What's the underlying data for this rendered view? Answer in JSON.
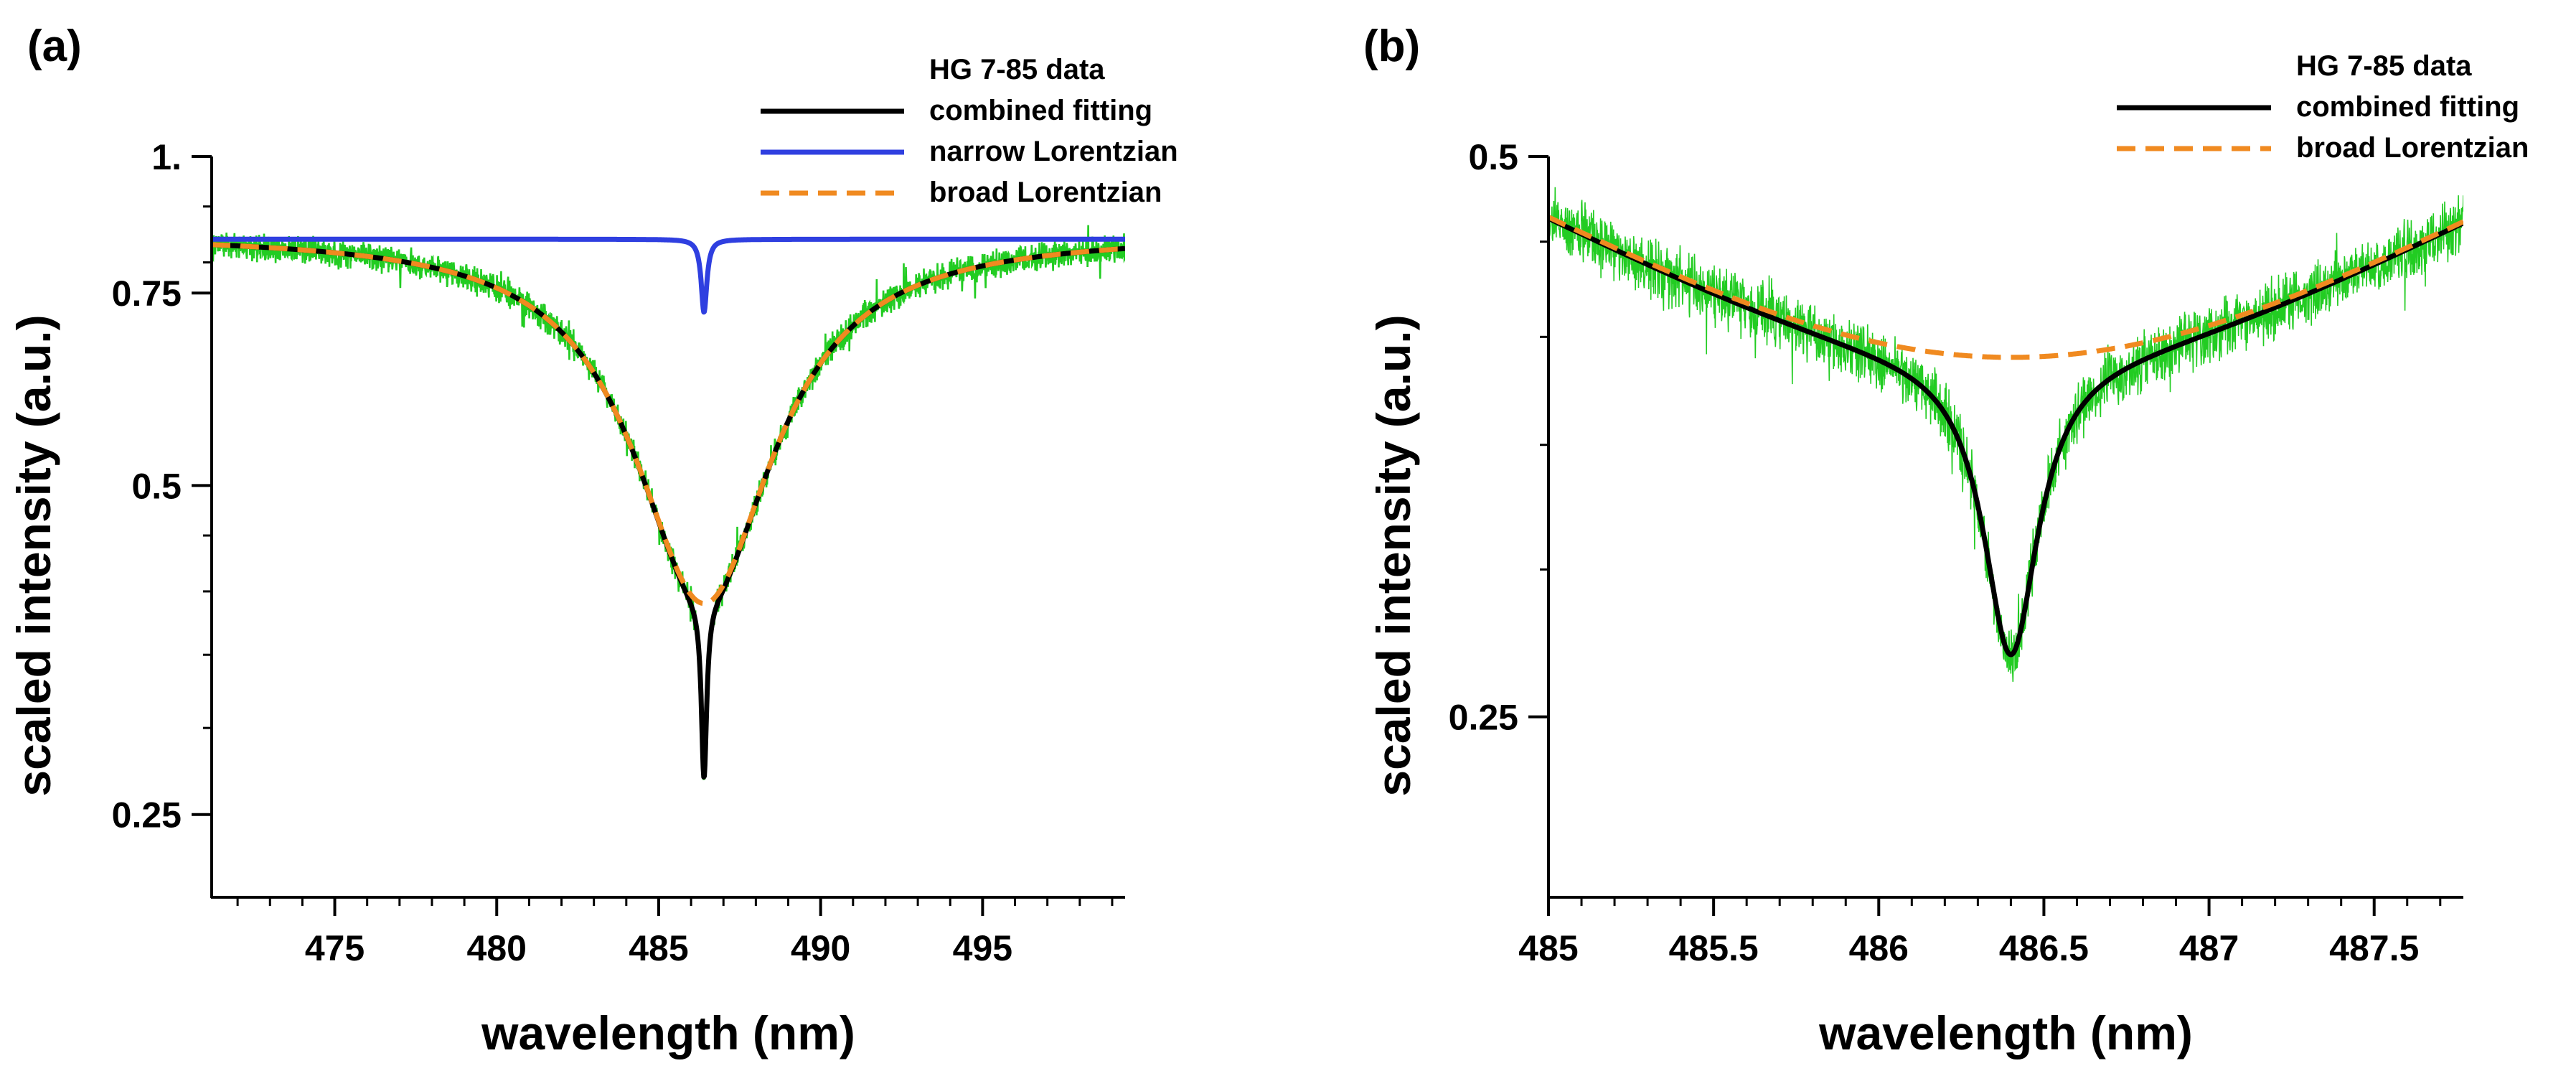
{
  "colors": {
    "data": "#22cc22",
    "combined": "#000000",
    "narrow": "#2f3fe0",
    "broad": "#f08a20",
    "axis": "#000000"
  },
  "chart_data": [
    {
      "id": "a",
      "panel_label": "(a)",
      "type": "line",
      "xlabel": "wavelength (nm)",
      "ylabel": "scaled intensity (a.u.)",
      "xlim": [
        471.2,
        499.4
      ],
      "ylim": [
        0.21,
        1.0
      ],
      "yscale": "log",
      "xticks": [
        {
          "value": 475,
          "label": "475"
        },
        {
          "value": 480,
          "label": "480"
        },
        {
          "value": 485,
          "label": "485"
        },
        {
          "value": 490,
          "label": "490"
        },
        {
          "value": 495,
          "label": "495"
        }
      ],
      "yticks": [
        {
          "value": 1.0,
          "label": "1."
        },
        {
          "value": 0.75,
          "label": "0.75"
        },
        {
          "value": 0.5,
          "label": "0.5"
        },
        {
          "value": 0.25,
          "label": "0.25"
        }
      ],
      "legend_position": "top-right",
      "legend": [
        {
          "label": "HG 7-85 data",
          "style": "data"
        },
        {
          "label": "combined fitting",
          "style": "combined"
        },
        {
          "label": "narrow Lorentzian",
          "style": "narrow"
        },
        {
          "label": "broad Lorentzian",
          "style": "broad"
        }
      ],
      "series": [
        {
          "name": "HG 7-85 data",
          "style": "data",
          "kind": "noisy",
          "x_range": [
            471.2,
            499.4
          ],
          "approx": "measured spectrum, absorption dip centred at 486.4 nm, minimum ≈0.25"
        },
        {
          "name": "combined fitting",
          "style": "combined",
          "center": 486.4,
          "baseline": 0.85,
          "broad_depth": 0.46,
          "broad_hwhm": 3.2,
          "narrow_depth": 0.12,
          "narrow_hwhm": 0.11
        },
        {
          "name": "narrow Lorentzian",
          "style": "narrow",
          "center": 486.4,
          "baseline": 0.84,
          "depth": 0.12,
          "hwhm": 0.11
        },
        {
          "name": "broad Lorentzian",
          "style": "broad",
          "center": 486.4,
          "baseline": 0.85,
          "depth": 0.46,
          "hwhm": 3.2
        }
      ]
    },
    {
      "id": "b",
      "panel_label": "(b)",
      "type": "line",
      "xlabel": "wavelength (nm)",
      "ylabel": "scaled intensity (a.u.)",
      "xlim": [
        485.0,
        487.77
      ],
      "ylim": [
        0.2,
        0.5
      ],
      "yscale": "log",
      "xticks": [
        {
          "value": 485,
          "label": "485"
        },
        {
          "value": 485.5,
          "label": "485.5"
        },
        {
          "value": 486,
          "label": "486"
        },
        {
          "value": 486.5,
          "label": "486.5"
        },
        {
          "value": 487,
          "label": "487"
        },
        {
          "value": 487.5,
          "label": "487.5"
        }
      ],
      "yticks": [
        {
          "value": 0.5,
          "label": "0.5"
        },
        {
          "value": 0.25,
          "label": "0.25"
        }
      ],
      "legend_position": "top-right",
      "legend": [
        {
          "label": "HG 7-85 data",
          "style": "data"
        },
        {
          "label": "combined fitting",
          "style": "combined"
        },
        {
          "label": "broad Lorentzian",
          "style": "broad"
        }
      ],
      "series": [
        {
          "name": "HG 7-85 data",
          "style": "data",
          "kind": "noisy",
          "x_range": [
            485.0,
            487.77
          ],
          "approx": "measured spectrum around the line core, minimum ≈0.25 near 486.4 nm"
        },
        {
          "name": "combined fitting",
          "style": "combined",
          "center": 486.4,
          "baseline": 0.85,
          "broad_depth": 0.46,
          "broad_hwhm": 3.2,
          "narrow_depth": 0.12,
          "narrow_hwhm": 0.11
        },
        {
          "name": "broad Lorentzian",
          "style": "broad",
          "center": 486.4,
          "baseline": 0.85,
          "depth": 0.46,
          "hwhm": 3.2
        }
      ]
    }
  ]
}
